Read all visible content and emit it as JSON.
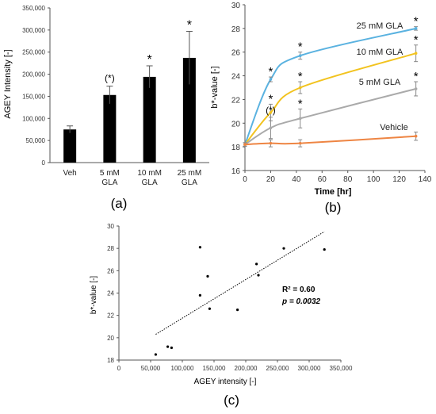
{
  "figure": {
    "panel_labels": [
      "(a)",
      "(b)",
      "(c)"
    ]
  },
  "chart_data": [
    {
      "panel": "(a)",
      "type": "bar",
      "ylabel": "AGEY Intensity [-]",
      "xlabel": "",
      "ylim": [
        0,
        350000
      ],
      "yticks": [
        0,
        50000,
        100000,
        150000,
        200000,
        250000,
        300000,
        350000
      ],
      "ytick_labels": [
        "0",
        "50,000",
        "100,000",
        "150,000",
        "200,000",
        "250,000",
        "300,000",
        "350,000"
      ],
      "categories": [
        [
          "Veh"
        ],
        [
          "5 mM",
          "GLA"
        ],
        [
          "10 mM",
          "GLA"
        ],
        [
          "25 mM",
          "GLA"
        ]
      ],
      "values": [
        75000,
        153000,
        194000,
        237000
      ],
      "errors": [
        8000,
        20000,
        25000,
        60000
      ],
      "annotations": [
        "",
        "(*)",
        "*",
        "*"
      ],
      "bar_color": "#000000",
      "grid": false
    },
    {
      "panel": "(b)",
      "type": "line",
      "xlabel": "Time [hr]",
      "ylabel": "b*-value [-]",
      "xlim": [
        0,
        140
      ],
      "ylim": [
        16,
        30
      ],
      "xticks": [
        0,
        20,
        40,
        60,
        80,
        100,
        120,
        140
      ],
      "yticks": [
        16,
        18,
        20,
        22,
        24,
        26,
        28,
        30
      ],
      "grid": false,
      "series": [
        {
          "name": "25 mM GLA",
          "color": "#5AB2E0",
          "x": [
            0,
            20,
            43,
            133
          ],
          "y": [
            18.2,
            23.7,
            25.7,
            28.0
          ],
          "err": [
            0.15,
            0.2,
            0.3,
            0.15
          ],
          "markers": [
            "",
            "*",
            "*",
            "*"
          ]
        },
        {
          "name": "10 mM GLA",
          "color": "#F2C31F",
          "x": [
            0,
            20,
            43,
            133
          ],
          "y": [
            18.2,
            20.9,
            23.0,
            25.9
          ],
          "err": [
            0.15,
            0.7,
            0.5,
            0.7
          ],
          "markers": [
            "",
            "*",
            "*",
            "*"
          ]
        },
        {
          "name": "5 mM GLA",
          "color": "#AAAAAA",
          "x": [
            0,
            20,
            43,
            133
          ],
          "y": [
            18.2,
            19.6,
            20.4,
            22.9
          ],
          "err": [
            0.15,
            0.9,
            0.8,
            0.6
          ],
          "markers": [
            "",
            "(*)",
            "*",
            "*"
          ]
        },
        {
          "name": "Vehicle",
          "color": "#EE8543",
          "x": [
            0,
            20,
            43,
            133
          ],
          "y": [
            18.2,
            18.3,
            18.3,
            18.9
          ],
          "err": [
            0.15,
            0.3,
            0.3,
            0.35
          ],
          "markers": [
            "",
            "",
            "",
            ""
          ]
        }
      ]
    },
    {
      "panel": "(c)",
      "type": "scatter",
      "xlabel": "AGEY intensity [-]",
      "ylabel": "b*-value [-]",
      "xlim": [
        0,
        350000
      ],
      "ylim": [
        18,
        30
      ],
      "xticks": [
        0,
        50000,
        100000,
        150000,
        200000,
        250000,
        300000,
        350000
      ],
      "xtick_labels": [
        "0",
        "50,000",
        "100,000",
        "150,000",
        "200,000",
        "250,000",
        "300,000",
        "350,000"
      ],
      "yticks": [
        18,
        20,
        22,
        24,
        26,
        28,
        30
      ],
      "grid": false,
      "points": [
        {
          "x": 58000,
          "y": 18.5
        },
        {
          "x": 77000,
          "y": 19.2
        },
        {
          "x": 83000,
          "y": 19.1
        },
        {
          "x": 128000,
          "y": 28.1
        },
        {
          "x": 128000,
          "y": 23.8
        },
        {
          "x": 140000,
          "y": 25.5
        },
        {
          "x": 143000,
          "y": 22.6
        },
        {
          "x": 187000,
          "y": 22.5
        },
        {
          "x": 217000,
          "y": 26.6
        },
        {
          "x": 220000,
          "y": 25.6
        },
        {
          "x": 260000,
          "y": 28.0
        },
        {
          "x": 324000,
          "y": 27.9
        }
      ],
      "trendline": {
        "x": [
          58000,
          324000
        ],
        "y": [
          20.3,
          29.5
        ],
        "style": "dotted"
      },
      "annotations": {
        "r2": "R² = 0.60",
        "p": "p = 0.0032"
      }
    }
  ]
}
